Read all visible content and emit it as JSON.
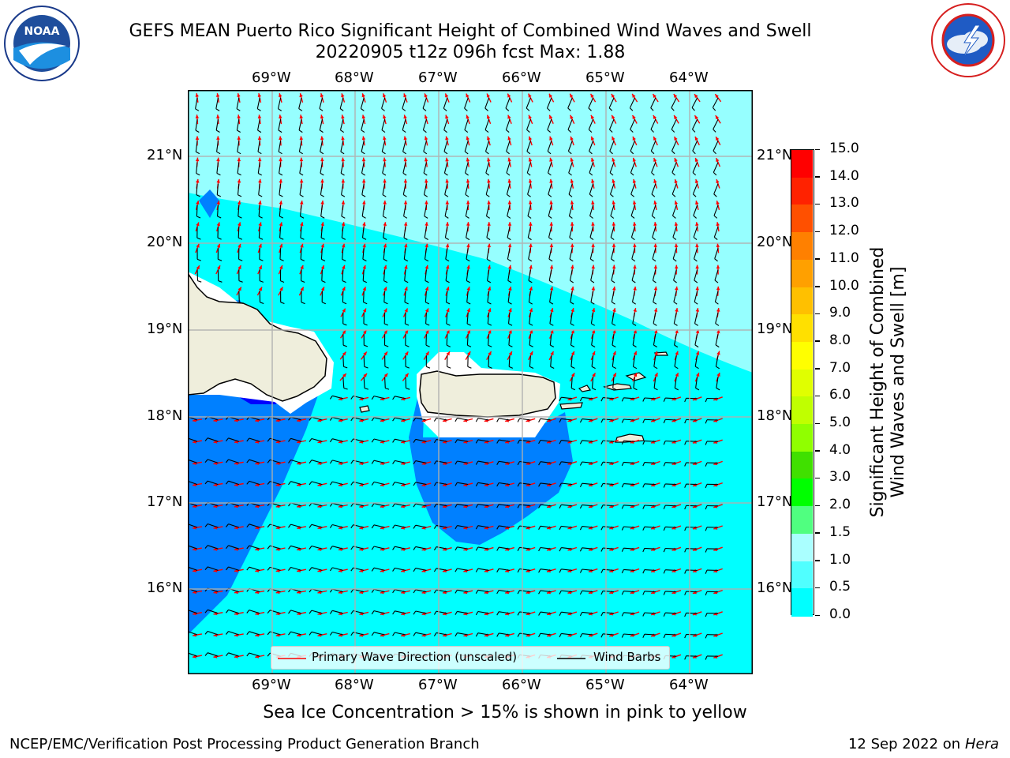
{
  "title": {
    "line1": "GEFS MEAN Puerto Rico Significant Height of Combined Wind Waves and Swell",
    "line2": "20220905 t12z 096h fcst   Max: 1.88"
  },
  "logos": {
    "left": {
      "text": "NOAA",
      "ring_text": "NATIONAL OCEANIC AND ATMOSPHERIC ADMINISTRATION · U.S. DEPARTMENT OF COMMERCE"
    },
    "right": {
      "ring_text": "NATIONAL WEATHER SERVICE"
    }
  },
  "map": {
    "lon_labels": [
      "69°W",
      "68°W",
      "67°W",
      "66°W",
      "65°W",
      "64°W"
    ],
    "lat_labels": [
      "21°N",
      "20°N",
      "19°N",
      "18°N",
      "17°N",
      "16°N"
    ],
    "colors": {
      "ocean_light": "#96ffff",
      "ocean_mid": "#00ffff",
      "ocean_low": "#0080ff",
      "ocean_lowest": "#0000ff",
      "land": "#efeedc",
      "barb": "#000000",
      "arrow": "#ff0000",
      "grid": "#b0b0b0"
    }
  },
  "legend": {
    "arrow_label": "Primary Wave Direction (unscaled)",
    "barb_label": "Wind Barbs"
  },
  "colorbar": {
    "label_line1": "Significant Height of Combined",
    "label_line2": "Wind Waves and Swell [m]",
    "ticks": [
      "15.0",
      "14.0",
      "13.0",
      "12.0",
      "11.0",
      "10.0",
      "9.0",
      "8.0",
      "7.0",
      "6.0",
      "5.0",
      "4.0",
      "3.0",
      "2.0",
      "1.5",
      "1.0",
      "0.5",
      "0.0"
    ],
    "colors": [
      "#ff0000",
      "#ff2200",
      "#ff5000",
      "#ff8000",
      "#ffa000",
      "#ffc000",
      "#ffe000",
      "#ffff00",
      "#e0ff00",
      "#c0ff00",
      "#90ff00",
      "#40e000",
      "#00ff00",
      "#50ff80",
      "#aaffff",
      "#50ffff",
      "#00ffff",
      "#0080ff",
      "#0000ff"
    ]
  },
  "footer": {
    "note": "Sea Ice Concentration > 15% is shown in pink to yellow",
    "left": "NCEP/EMC/Verification Post Processing Product Generation Branch",
    "date": "12 Sep 2022 on",
    "system": "Hera"
  }
}
